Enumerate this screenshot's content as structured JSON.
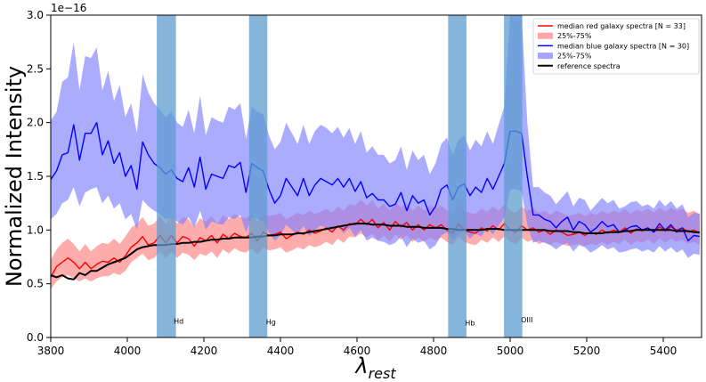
{
  "chart_data": {
    "type": "line",
    "title": "",
    "xlabel": "λ",
    "xlabel_sub": "rest",
    "ylabel": "Normalized Intensity",
    "y_multiplier": "1e−16",
    "xlim": [
      3800,
      5500
    ],
    "ylim": [
      0.0,
      3.0
    ],
    "x_ticks": [
      3800,
      4000,
      4200,
      4400,
      4600,
      4800,
      5000,
      5200,
      5400
    ],
    "y_ticks": [
      0.0,
      0.5,
      1.0,
      1.5,
      2.0,
      2.5,
      3.0
    ],
    "x_tick_labels": [
      "3800",
      "4000",
      "4200",
      "4400",
      "4600",
      "4800",
      "5000",
      "5200",
      "5400"
    ],
    "y_tick_labels": [
      "0.0",
      "0.5",
      "1.0",
      "1.5",
      "2.0",
      "2.5",
      "3.0"
    ],
    "grid": false,
    "legend_position": "top-right",
    "colors": {
      "red": "#ff0000",
      "red_fill": "#ff7f7f",
      "blue": "#0000ff",
      "blue_fill": "#8080ff",
      "black": "#000000",
      "band": "#5d9cd0"
    },
    "legend": [
      {
        "label": "median red galaxy spectra [N = 33]",
        "kind": "line",
        "color": "#ff0000"
      },
      {
        "label": "25%-75%",
        "kind": "patch",
        "color": "#ff7f7f"
      },
      {
        "label": "median blue galaxy spectra [N = 30]",
        "kind": "line",
        "color": "#0000ff"
      },
      {
        "label": "25%-75%",
        "kind": "patch",
        "color": "#8080ff"
      },
      {
        "label": "reference spectra",
        "kind": "line",
        "color": "#000000"
      }
    ],
    "line_bands": [
      {
        "name": "Hd",
        "x_min": 4077,
        "x_max": 4127,
        "label_y": 0.13
      },
      {
        "name": "Hg",
        "x_min": 4318,
        "x_max": 4366,
        "label_y": 0.12
      },
      {
        "name": "Hb",
        "x_min": 4838,
        "x_max": 4886,
        "label_y": 0.11
      },
      {
        "name": "OIII",
        "x_min": 4984,
        "x_max": 5032,
        "label_y": 0.14
      }
    ],
    "x": [
      3800,
      3815,
      3830,
      3845,
      3860,
      3875,
      3890,
      3905,
      3920,
      3935,
      3950,
      3965,
      3980,
      3995,
      4010,
      4025,
      4040,
      4055,
      4070,
      4085,
      4100,
      4115,
      4130,
      4145,
      4160,
      4175,
      4190,
      4205,
      4220,
      4235,
      4250,
      4265,
      4280,
      4295,
      4310,
      4325,
      4340,
      4355,
      4370,
      4385,
      4400,
      4415,
      4430,
      4445,
      4460,
      4475,
      4490,
      4505,
      4520,
      4535,
      4550,
      4565,
      4580,
      4595,
      4610,
      4625,
      4640,
      4655,
      4670,
      4685,
      4700,
      4715,
      4730,
      4745,
      4760,
      4775,
      4790,
      4805,
      4820,
      4835,
      4850,
      4865,
      4880,
      4895,
      4910,
      4925,
      4940,
      4955,
      4970,
      4985,
      5000,
      5015,
      5030,
      5045,
      5060,
      5075,
      5090,
      5105,
      5120,
      5135,
      5150,
      5165,
      5180,
      5195,
      5210,
      5225,
      5240,
      5255,
      5270,
      5285,
      5300,
      5315,
      5330,
      5345,
      5360,
      5375,
      5390,
      5405,
      5420,
      5435,
      5450,
      5465,
      5480,
      5495
    ],
    "series": [
      {
        "name": "median red galaxy spectra [N = 33]",
        "color": "#ff0000",
        "values": [
          0.56,
          0.66,
          0.7,
          0.74,
          0.7,
          0.64,
          0.7,
          0.64,
          0.68,
          0.71,
          0.7,
          0.74,
          0.7,
          0.76,
          0.84,
          0.88,
          0.94,
          0.86,
          0.88,
          0.95,
          0.88,
          0.95,
          0.88,
          0.94,
          0.92,
          0.85,
          0.93,
          0.9,
          0.95,
          0.88,
          0.96,
          0.92,
          0.97,
          0.94,
          0.93,
          0.97,
          0.9,
          0.98,
          0.95,
          0.96,
          0.98,
          0.92,
          0.95,
          0.98,
          0.96,
          1.0,
          0.97,
          0.99,
          1.02,
          0.98,
          1.04,
          1.0,
          1.06,
          1.05,
          1.1,
          1.05,
          1.1,
          1.02,
          1.07,
          1.0,
          1.08,
          1.03,
          1.07,
          1.0,
          1.05,
          1.0,
          1.05,
          1.02,
          1.05,
          1.0,
          0.97,
          1.06,
          1.0,
          0.98,
          0.97,
          1.02,
          0.99,
          1.04,
          1.0,
          1.06,
          1.0,
          0.98,
          1.04,
          1.0,
          1.02,
          0.98,
          1.0,
          0.96,
          1.0,
          0.98,
          0.95,
          0.96,
          0.98,
          0.95,
          0.98,
          0.96,
          1.0,
          0.97,
          1.0,
          0.98,
          1.02,
          0.97,
          1.01,
          0.99,
          1.02,
          0.98,
          1.03,
          0.99,
          1.03,
          1.0,
          1.02,
          0.98,
          1.0,
          0.97
        ]
      },
      {
        "name": "median blue galaxy spectra [N = 30]",
        "color": "#0000ff",
        "values": [
          1.47,
          1.55,
          1.7,
          1.72,
          1.98,
          1.65,
          1.9,
          1.9,
          2.0,
          1.7,
          1.83,
          1.62,
          1.72,
          1.5,
          1.6,
          1.38,
          1.82,
          1.7,
          1.62,
          1.58,
          1.52,
          1.56,
          1.48,
          1.45,
          1.58,
          1.4,
          1.68,
          1.38,
          1.52,
          1.5,
          1.48,
          1.6,
          1.58,
          1.63,
          1.35,
          1.62,
          1.58,
          1.55,
          1.38,
          1.25,
          1.32,
          1.48,
          1.4,
          1.32,
          1.48,
          1.32,
          1.42,
          1.48,
          1.45,
          1.42,
          1.48,
          1.4,
          1.48,
          1.36,
          1.45,
          1.3,
          1.34,
          1.28,
          1.28,
          1.22,
          1.24,
          1.35,
          1.18,
          1.32,
          1.25,
          1.28,
          1.14,
          1.22,
          1.38,
          1.42,
          1.28,
          1.4,
          1.43,
          1.32,
          1.4,
          1.35,
          1.48,
          1.38,
          1.5,
          1.62,
          1.92,
          1.92,
          1.9,
          1.5,
          1.14,
          1.14,
          1.1,
          1.08,
          1.02,
          1.08,
          1.12,
          1.0,
          1.08,
          1.05,
          0.98,
          1.02,
          1.08,
          1.03,
          1.05,
          0.98,
          1.0,
          1.03,
          1.04,
          1.0,
          1.02,
          0.98,
          1.06,
          1.0,
          1.05,
          0.98,
          1.02,
          0.9,
          0.95,
          0.94
        ]
      },
      {
        "name": "reference spectra",
        "color": "#000000",
        "values": [
          0.58,
          0.56,
          0.58,
          0.55,
          0.54,
          0.6,
          0.58,
          0.62,
          0.62,
          0.65,
          0.68,
          0.7,
          0.72,
          0.74,
          0.78,
          0.82,
          0.84,
          0.85,
          0.86,
          0.86,
          0.86,
          0.87,
          0.87,
          0.88,
          0.88,
          0.89,
          0.89,
          0.9,
          0.91,
          0.91,
          0.92,
          0.92,
          0.93,
          0.93,
          0.93,
          0.93,
          0.94,
          0.94,
          0.95,
          0.95,
          0.96,
          0.96,
          0.96,
          0.97,
          0.97,
          0.98,
          0.99,
          1.0,
          1.01,
          1.02,
          1.03,
          1.04,
          1.05,
          1.06,
          1.06,
          1.06,
          1.05,
          1.05,
          1.05,
          1.04,
          1.04,
          1.04,
          1.03,
          1.03,
          1.03,
          1.02,
          1.02,
          1.02,
          1.02,
          1.01,
          1.01,
          1.0,
          1.0,
          1.0,
          1.0,
          1.0,
          1.01,
          1.01,
          1.01,
          1.0,
          1.0,
          1.0,
          1.0,
          1.0,
          1.0,
          1.0,
          1.0,
          0.99,
          0.99,
          0.99,
          0.99,
          0.98,
          0.98,
          0.97,
          0.97,
          0.97,
          0.97,
          0.98,
          0.98,
          0.98,
          0.99,
          0.99,
          1.0,
          1.0,
          1.0,
          1.0,
          1.0,
          1.0,
          1.0,
          0.99,
          0.99,
          0.99,
          0.98,
          0.98
        ]
      }
    ],
    "bands": [
      {
        "name": "red 25%-75%",
        "color": "#ff7f7f",
        "lower": [
          0.45,
          0.52,
          0.56,
          0.58,
          0.55,
          0.52,
          0.55,
          0.52,
          0.55,
          0.57,
          0.57,
          0.6,
          0.58,
          0.62,
          0.7,
          0.74,
          0.78,
          0.72,
          0.74,
          0.8,
          0.74,
          0.8,
          0.74,
          0.79,
          0.77,
          0.72,
          0.78,
          0.76,
          0.8,
          0.74,
          0.82,
          0.78,
          0.83,
          0.8,
          0.79,
          0.83,
          0.77,
          0.84,
          0.81,
          0.82,
          0.84,
          0.79,
          0.81,
          0.84,
          0.82,
          0.86,
          0.84,
          0.86,
          0.89,
          0.86,
          0.92,
          0.88,
          0.94,
          0.93,
          0.97,
          0.93,
          0.97,
          0.9,
          0.95,
          0.89,
          0.96,
          0.91,
          0.95,
          0.89,
          0.93,
          0.89,
          0.93,
          0.9,
          0.93,
          0.89,
          0.86,
          0.94,
          0.89,
          0.87,
          0.86,
          0.91,
          0.88,
          0.93,
          0.89,
          0.94,
          0.89,
          0.87,
          0.93,
          0.89,
          0.91,
          0.87,
          0.89,
          0.86,
          0.89,
          0.87,
          0.85,
          0.86,
          0.87,
          0.85,
          0.87,
          0.86,
          0.89,
          0.86,
          0.89,
          0.87,
          0.91,
          0.86,
          0.9,
          0.88,
          0.91,
          0.87,
          0.92,
          0.88,
          0.92,
          0.89,
          0.91,
          0.87,
          0.89,
          0.86
        ],
        "upper": [
          0.72,
          0.82,
          0.88,
          0.92,
          0.87,
          0.8,
          0.87,
          0.8,
          0.85,
          0.88,
          0.87,
          0.92,
          0.87,
          0.94,
          1.02,
          1.06,
          1.12,
          1.04,
          1.06,
          1.13,
          1.06,
          1.13,
          1.06,
          1.12,
          1.1,
          1.03,
          1.11,
          1.08,
          1.13,
          1.06,
          1.14,
          1.1,
          1.15,
          1.12,
          1.11,
          1.15,
          1.08,
          1.16,
          1.13,
          1.14,
          1.16,
          1.1,
          1.13,
          1.16,
          1.14,
          1.18,
          1.15,
          1.17,
          1.2,
          1.16,
          1.22,
          1.18,
          1.24,
          1.23,
          1.28,
          1.23,
          1.28,
          1.2,
          1.25,
          1.18,
          1.26,
          1.21,
          1.25,
          1.18,
          1.23,
          1.18,
          1.23,
          1.2,
          1.23,
          1.18,
          1.15,
          1.24,
          1.18,
          1.16,
          1.15,
          1.2,
          1.17,
          1.22,
          1.18,
          1.24,
          1.18,
          1.16,
          1.22,
          1.18,
          1.2,
          1.16,
          1.18,
          1.14,
          1.18,
          1.16,
          1.13,
          1.14,
          1.16,
          1.13,
          1.16,
          1.14,
          1.18,
          1.15,
          1.18,
          1.16,
          1.2,
          1.15,
          1.19,
          1.17,
          1.2,
          1.16,
          1.21,
          1.17,
          1.21,
          1.18,
          1.2,
          1.16,
          1.18,
          1.15
        ]
      },
      {
        "name": "blue 25%-75%",
        "color": "#8080ff",
        "lower": [
          1.1,
          1.15,
          1.25,
          1.28,
          1.4,
          1.22,
          1.35,
          1.38,
          1.4,
          1.25,
          1.32,
          1.2,
          1.25,
          1.1,
          1.15,
          1.0,
          1.28,
          1.22,
          1.18,
          1.15,
          1.1,
          1.12,
          1.08,
          1.05,
          1.12,
          1.02,
          1.18,
          1.0,
          1.08,
          1.06,
          1.05,
          1.12,
          1.1,
          1.14,
          0.98,
          1.12,
          1.1,
          1.08,
          0.98,
          0.9,
          0.95,
          1.05,
          1.0,
          0.95,
          1.04,
          0.94,
          1.0,
          1.04,
          1.02,
          0.99,
          1.03,
          0.97,
          1.02,
          0.94,
          1.0,
          0.9,
          0.93,
          0.9,
          0.89,
          0.86,
          0.88,
          0.94,
          0.84,
          0.92,
          0.88,
          0.9,
          0.82,
          0.86,
          0.95,
          0.98,
          0.9,
          0.97,
          0.99,
          0.92,
          0.97,
          0.94,
          1.02,
          0.96,
          1.04,
          1.12,
          1.38,
          1.38,
          1.36,
          1.05,
          0.88,
          0.9,
          0.88,
          0.86,
          0.82,
          0.86,
          0.88,
          0.8,
          0.86,
          0.84,
          0.79,
          0.82,
          0.86,
          0.82,
          0.84,
          0.79,
          0.8,
          0.82,
          0.83,
          0.8,
          0.82,
          0.79,
          0.85,
          0.8,
          0.84,
          0.79,
          0.82,
          0.74,
          0.78,
          0.77
        ],
        "upper": [
          2.02,
          2.1,
          2.38,
          2.42,
          2.75,
          2.3,
          2.62,
          2.6,
          2.7,
          2.3,
          2.48,
          2.2,
          2.35,
          2.05,
          2.18,
          1.9,
          2.45,
          2.28,
          2.18,
          2.12,
          2.05,
          2.1,
          2.0,
          1.96,
          2.12,
          1.9,
          2.25,
          1.88,
          2.05,
          2.02,
          2.0,
          2.15,
          2.12,
          2.18,
          1.85,
          2.15,
          2.1,
          2.08,
          1.88,
          1.75,
          1.82,
          2.0,
          1.9,
          1.8,
          1.98,
          1.8,
          1.92,
          1.98,
          1.95,
          1.9,
          1.96,
          1.86,
          1.95,
          1.8,
          1.92,
          1.72,
          1.78,
          1.7,
          1.7,
          1.62,
          1.65,
          1.78,
          1.56,
          1.74,
          1.65,
          1.7,
          1.52,
          1.62,
          1.8,
          1.86,
          1.7,
          1.84,
          1.88,
          1.74,
          1.84,
          1.78,
          1.92,
          1.8,
          1.98,
          2.15,
          3.0,
          3.0,
          3.0,
          2.0,
          1.4,
          1.4,
          1.35,
          1.32,
          1.24,
          1.3,
          1.36,
          1.22,
          1.3,
          1.28,
          1.18,
          1.24,
          1.3,
          1.25,
          1.28,
          1.2,
          1.22,
          1.26,
          1.27,
          1.22,
          1.24,
          1.2,
          1.28,
          1.22,
          1.27,
          1.2,
          1.24,
          1.12,
          1.16,
          1.15
        ]
      }
    ]
  }
}
